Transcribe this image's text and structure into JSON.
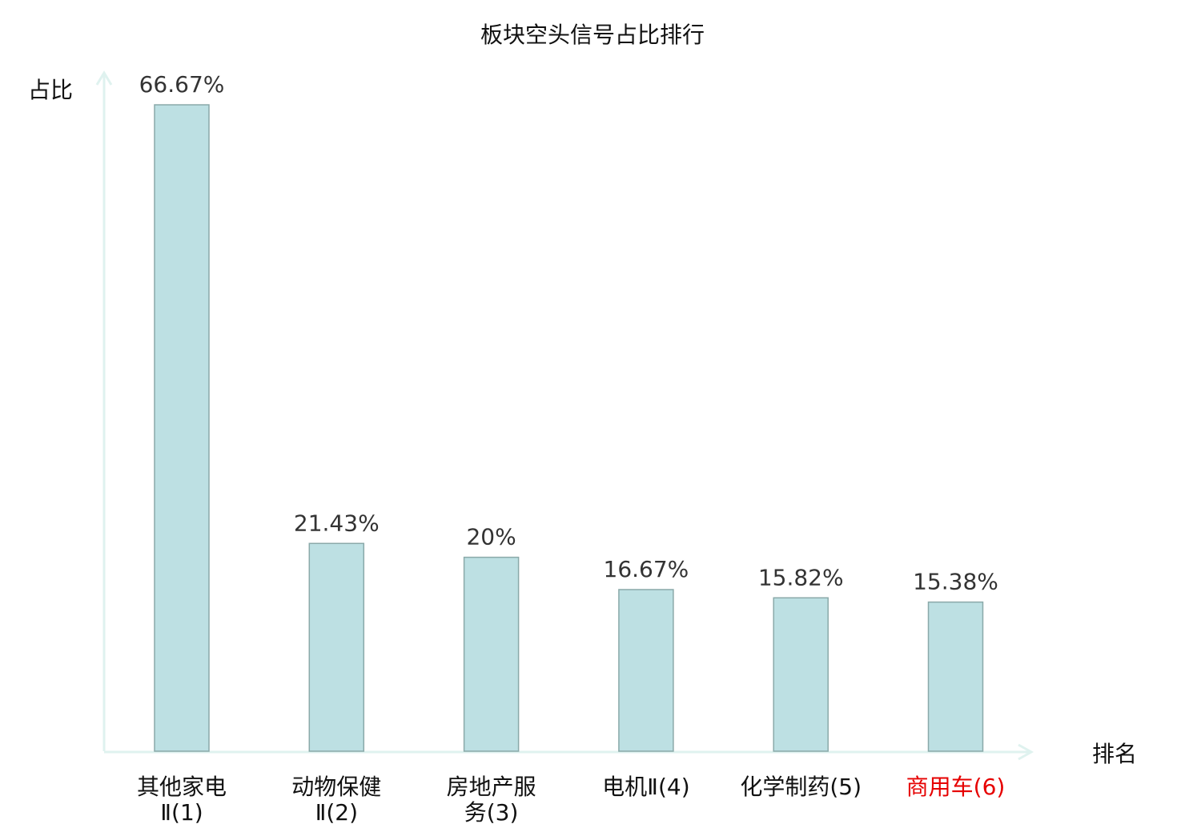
{
  "chart_data": {
    "type": "bar",
    "title": "板块空头信号占比排行",
    "ylabel": "占比",
    "xlabel": "排名",
    "categories": [
      "其他家电Ⅱ(1)",
      "动物保健Ⅱ(2)",
      "房地产服务(3)",
      "电机Ⅱ(4)",
      "化学制药(5)",
      "商用车(6)"
    ],
    "values": [
      66.67,
      21.43,
      20,
      16.67,
      15.82,
      15.38
    ],
    "data_labels": [
      "66.67%",
      "21.43%",
      "20%",
      "16.67%",
      "15.82%",
      "15.38%"
    ],
    "highlight_category_index": 5,
    "ylim": [
      0,
      70
    ],
    "grid": false,
    "legend": "none",
    "colors": {
      "bar_fill": "#bde0e3",
      "bar_stroke": "#8aa9a9",
      "axis": "#dff2ef",
      "text": "#333333",
      "highlight_text": "#e60000"
    }
  }
}
